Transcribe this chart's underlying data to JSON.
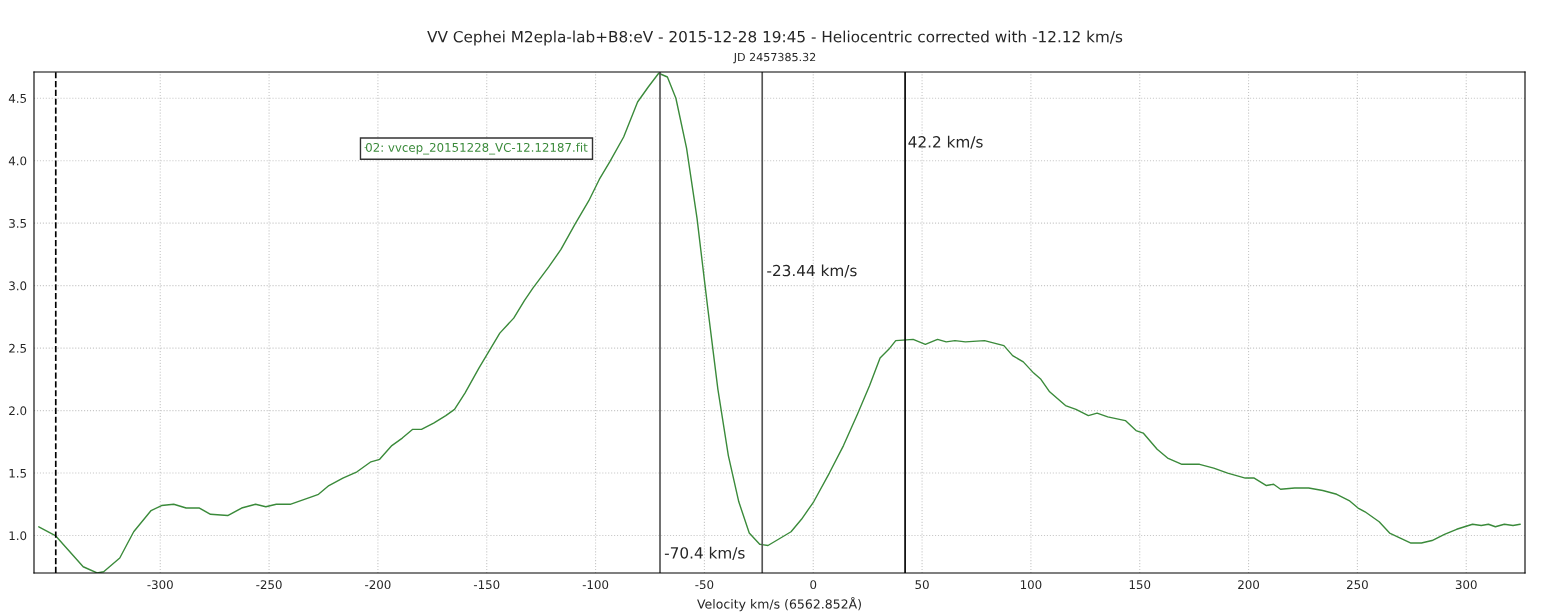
{
  "chart_data": {
    "type": "line",
    "title": "VV Cephei M2epla-lab+B8:eV - 2015-12-28 19:45 - Heliocentric corrected with -12.12 km/s",
    "subtitle": "JD 2457385.32",
    "xlabel": "Velocity km/s (6562.852Å)",
    "series": [
      {
        "name": "02: vvcep_20151228_VC-12.12187.fit",
        "color": "#3a8a3a",
        "x": [
          -355.8,
          -348.2,
          -335.4,
          -329.0,
          -326.0,
          -318.6,
          -312.2,
          -304.2,
          -299.4,
          -293.8,
          -288.1,
          -282.0,
          -276.9,
          -269.0,
          -262.6,
          -256.2,
          -251.5,
          -246.7,
          -240.3,
          -230.5,
          -227.3,
          -222.5,
          -216.1,
          -209.6,
          -203.2,
          -199.2,
          -193.6,
          -188.8,
          -184.0,
          -180.0,
          -174.4,
          -168.8,
          -164.8,
          -160.0,
          -153.6,
          -148.8,
          -144.0,
          -137.6,
          -132.7,
          -128.8,
          -121.5,
          -115.9,
          -109.5,
          -103.1,
          -98.3,
          -93.5,
          -87.1,
          -80.7,
          -75.8,
          -71.0,
          -67.0,
          -63.1,
          -58.2,
          -53.4,
          -48.6,
          -43.8,
          -39.0,
          -34.2,
          -29.4,
          -24.6,
          -20.8,
          -15.0,
          -10.2,
          -5.4,
          0.2,
          7.4,
          13.9,
          20.3,
          25.9,
          30.7,
          34.7,
          37.9,
          45.9,
          51.5,
          57.1,
          61.1,
          65.1,
          69.9,
          78.7,
          87.6,
          91.6,
          96.5,
          101.3,
          104.6,
          108.6,
          115.9,
          120.7,
          126.4,
          130.4,
          135.3,
          143.4,
          148.3,
          151.6,
          158.0,
          162.8,
          169.4,
          177.5,
          184.0,
          190.4,
          198.5,
          202.6,
          208.2,
          211.5,
          214.7,
          221.2,
          227.6,
          234.1,
          240.5,
          246.2,
          250.3,
          253.5,
          260.0,
          264.8,
          269.7,
          274.6,
          279.4,
          284.3,
          290.0,
          295.6,
          302.9,
          306.9,
          310.2,
          313.4,
          317.5,
          321.5,
          324.8
        ],
        "values": [
          1.07,
          1.0,
          0.75,
          0.7,
          0.71,
          0.82,
          1.03,
          1.2,
          1.24,
          1.25,
          1.22,
          1.22,
          1.17,
          1.16,
          1.22,
          1.25,
          1.23,
          1.25,
          1.25,
          1.31,
          1.33,
          1.4,
          1.46,
          1.51,
          1.59,
          1.61,
          1.72,
          1.78,
          1.85,
          1.85,
          1.9,
          1.96,
          2.01,
          2.14,
          2.34,
          2.48,
          2.62,
          2.74,
          2.88,
          2.98,
          3.15,
          3.29,
          3.49,
          3.68,
          3.85,
          3.99,
          4.19,
          4.47,
          4.59,
          4.7,
          4.67,
          4.5,
          4.1,
          3.54,
          2.84,
          2.17,
          1.64,
          1.27,
          1.02,
          0.93,
          0.92,
          0.98,
          1.03,
          1.13,
          1.27,
          1.5,
          1.72,
          1.97,
          2.2,
          2.42,
          2.49,
          2.56,
          2.57,
          2.53,
          2.57,
          2.55,
          2.56,
          2.55,
          2.56,
          2.52,
          2.44,
          2.39,
          2.3,
          2.25,
          2.15,
          2.04,
          2.01,
          1.96,
          1.98,
          1.95,
          1.92,
          1.84,
          1.82,
          1.69,
          1.62,
          1.57,
          1.57,
          1.54,
          1.5,
          1.46,
          1.46,
          1.4,
          1.41,
          1.37,
          1.38,
          1.38,
          1.36,
          1.33,
          1.28,
          1.22,
          1.19,
          1.11,
          1.02,
          0.98,
          0.94,
          0.94,
          0.96,
          1.01,
          1.05,
          1.09,
          1.08,
          1.09,
          1.07,
          1.09,
          1.08,
          1.09
        ]
      }
    ],
    "ref_lines": [
      {
        "axis": "x",
        "value": -348,
        "color": "#000000",
        "line_style": "dashed"
      },
      {
        "axis": "x",
        "value": -70.4,
        "color": "#555555",
        "line_style": "solid"
      },
      {
        "axis": "x",
        "value": -23.44,
        "color": "#555555",
        "line_style": "solid"
      },
      {
        "axis": "x",
        "value": 42.2,
        "color": "#000000",
        "line_style": "solid"
      }
    ],
    "annotations": [
      {
        "text": "-70.4 km/s",
        "x": -68.5,
        "y": 0.85
      },
      {
        "text": "-23.44 km/s",
        "x": -21.5,
        "y": 3.11
      },
      {
        "text": "42.2 km/s",
        "x": 43.4,
        "y": 4.14
      }
    ],
    "xlim": [
      -358,
      327
    ],
    "ylim": [
      0.7,
      4.71
    ],
    "xticks": [
      -300,
      -250,
      -200,
      -150,
      -100,
      -50,
      0,
      50,
      100,
      150,
      200,
      250,
      300
    ],
    "yticks": [
      {
        "value": 1,
        "label": "1.0"
      },
      {
        "value": 1.5,
        "label": "1.5"
      },
      {
        "value": 2,
        "label": "2.0"
      },
      {
        "value": 2.5,
        "label": "2.5"
      },
      {
        "value": 3,
        "label": "3.0"
      },
      {
        "value": 3.5,
        "label": "3.5"
      },
      {
        "value": 4,
        "label": "4.0"
      },
      {
        "value": 4.5,
        "label": "4.5"
      }
    ],
    "grid": true,
    "legend": "top left",
    "marker": "none",
    "line_style": "solid"
  }
}
